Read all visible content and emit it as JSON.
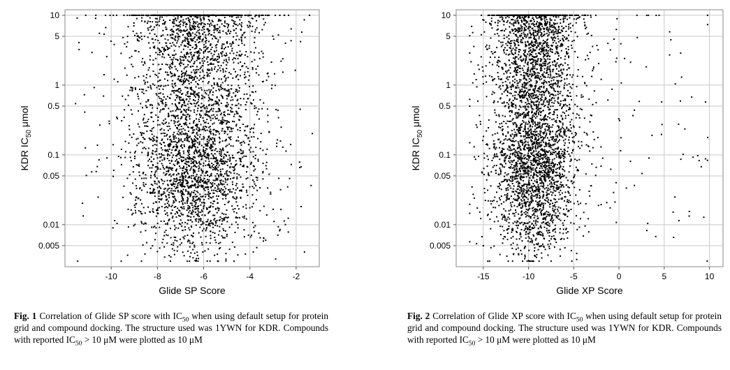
{
  "chart_data": [
    {
      "id": "fig1",
      "type": "scatter",
      "xlabel": "Glide SP Score",
      "ylabel_main": "KDR IC",
      "ylabel_sub": "50",
      "ylabel_unit": " μmol",
      "xlim": [
        -12,
        -1
      ],
      "ylim": [
        0.0025,
        12
      ],
      "yscale": "log",
      "xticks": [
        -10,
        -8,
        -6,
        -4,
        -2
      ],
      "xtick_labels": [
        "-10",
        "-8",
        "-6",
        "-4",
        "-2"
      ],
      "yticks": [
        0.005,
        0.01,
        0.05,
        0.1,
        0.5,
        1,
        5,
        10
      ],
      "ytick_labels": [
        "0.005",
        "0.01",
        "0.05",
        "0.1",
        "0.5",
        "1",
        "5",
        "10"
      ],
      "grid": true,
      "point_color": "#000000",
      "distribution": {
        "count": 2600,
        "x_center": -6.3,
        "x_spread": 1.35,
        "x_min": -11.6,
        "x_max": -1.3,
        "capped_value": 10,
        "capped_fraction": 0.16,
        "y_min": 0.003,
        "y_max": 10,
        "lower_count": 1200,
        "lower_peak": 0.05
      }
    },
    {
      "id": "fig2",
      "type": "scatter",
      "xlabel": "Glide XP Score",
      "ylabel_main": "KDR IC",
      "ylabel_sub": "50",
      "ylabel_unit": " μmol",
      "xlim": [
        -18,
        11.5
      ],
      "ylim": [
        0.0025,
        12
      ],
      "yscale": "log",
      "xticks": [
        -15,
        -10,
        -5,
        0,
        5,
        10
      ],
      "xtick_labels": [
        "-15",
        "-10",
        "-5",
        "0",
        "5",
        "10"
      ],
      "yticks": [
        0.005,
        0.01,
        0.05,
        0.1,
        0.5,
        1,
        5,
        10
      ],
      "ytick_labels": [
        "0.005",
        "0.01",
        "0.05",
        "0.1",
        "0.5",
        "1",
        "5",
        "10"
      ],
      "grid": true,
      "point_color": "#000000",
      "distribution": {
        "count": 2800,
        "x_center": -9.3,
        "x_spread": 2.4,
        "x_min": -16.5,
        "x_max": 10,
        "capped_value": 10,
        "capped_fraction": 0.16,
        "y_min": 0.003,
        "y_max": 10,
        "lower_count": 1200,
        "lower_peak": 0.05
      }
    }
  ],
  "captions": [
    {
      "label": "Fig. 1",
      "t1": "Correlation of Glide SP score with IC",
      "sub1": "50",
      "t2": " when using default setup for protein grid and compound docking. The structure used was 1YWN for KDR. Compounds with reported IC",
      "sub2": "50",
      "t3": " > 10 μM were plotted as 10 μM"
    },
    {
      "label": "Fig. 2",
      "t1": "Correlation of Glide XP score with IC",
      "sub1": "50",
      "t2": " when using default setup for protein grid and compound docking. The structure used was 1YWN for KDR. Compounds with reported IC",
      "sub2": "50",
      "t3": " > 10 μM were plotted as 10 μM"
    }
  ]
}
